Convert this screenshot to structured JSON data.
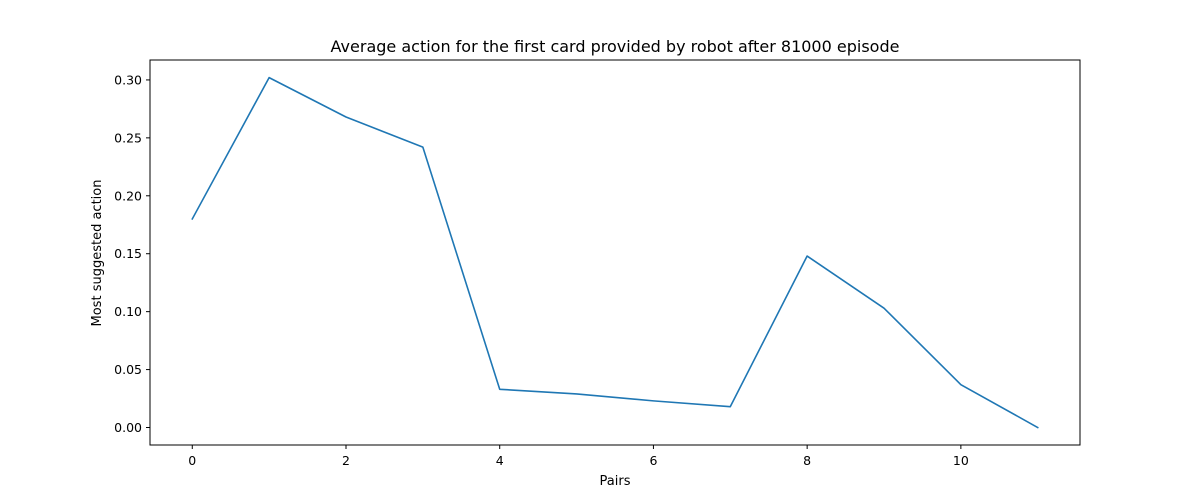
{
  "chart_data": {
    "type": "line",
    "title": "Average action for the first card provided by robot after 81000 episode",
    "xlabel": "Pairs",
    "ylabel": "Most suggested action",
    "x": [
      0,
      1,
      2,
      3,
      4,
      5,
      6,
      7,
      8,
      9,
      10,
      11
    ],
    "series": [
      {
        "values": [
          0.18,
          0.302,
          0.268,
          0.242,
          0.033,
          0.029,
          0.023,
          0.018,
          0.148,
          0.103,
          0.037,
          0.0
        ]
      }
    ],
    "xlim": [
      -0.55,
      11.55
    ],
    "ylim": [
      -0.0151,
      0.3172
    ],
    "xticks": [
      0,
      2,
      4,
      6,
      8,
      10
    ],
    "xtick_labels": [
      "0",
      "2",
      "4",
      "6",
      "8",
      "10"
    ],
    "yticks": [
      0.0,
      0.05,
      0.1,
      0.15,
      0.2,
      0.25,
      0.3
    ],
    "ytick_labels": [
      "0.00",
      "0.05",
      "0.10",
      "0.15",
      "0.20",
      "0.25",
      "0.30"
    ],
    "grid": false,
    "legend": "none",
    "line_color": "#1f77b4"
  }
}
